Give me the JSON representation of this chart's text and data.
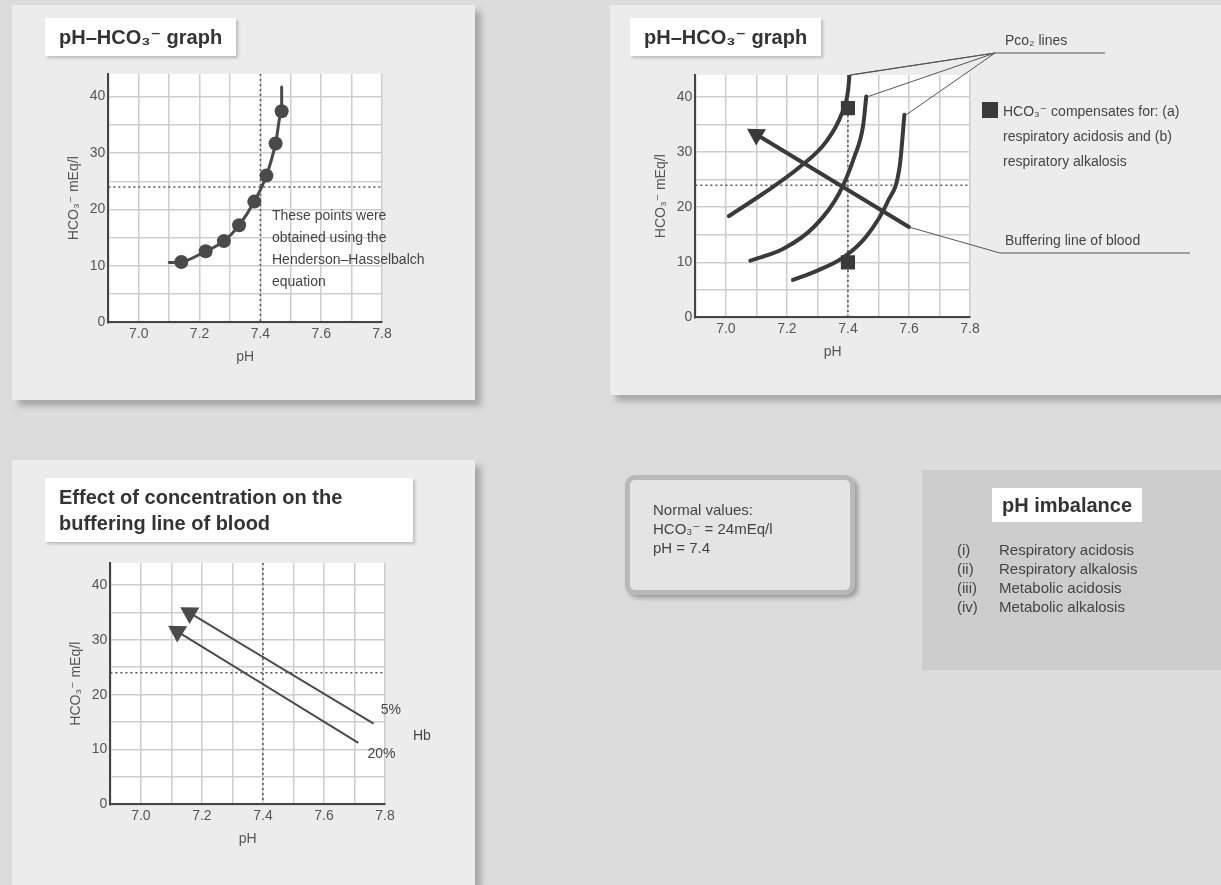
{
  "chart_data": [
    {
      "type": "line",
      "title": "pH–HCO₃⁻ graph",
      "xlabel": "pH",
      "ylabel": "HCO₃⁻ mEq/l",
      "xlim": [
        6.9,
        7.8
      ],
      "ylim": [
        0,
        44
      ],
      "xticks": [
        {
          "value": 6.9,
          "label": null
        },
        {
          "value": 7,
          "label": "7.0"
        },
        {
          "value": 7.1,
          "label": null
        },
        7.2,
        {
          "value": 7.3,
          "label": null
        },
        7.4,
        {
          "value": 7.5,
          "label": null
        },
        7.6,
        {
          "value": 7.7,
          "label": null
        },
        7.8
      ],
      "yticks": [
        0,
        {
          "value": 5,
          "label": null
        },
        10,
        {
          "value": 15,
          "label": null
        },
        20,
        {
          "value": 25,
          "label": null
        },
        30,
        {
          "value": 35,
          "label": null
        },
        40
      ],
      "grid": true,
      "legend": false,
      "ref_lines": [
        {
          "axis": "x",
          "value": 7.4,
          "line_style": "dotted",
          "color": "#555555"
        },
        {
          "axis": "y",
          "value": 24,
          "line_style": "dotted",
          "color": "#555555"
        }
      ],
      "annotations": [
        "These points were obtained using the Henderson–Hasselbalch equation"
      ],
      "series": [
        {
          "type": "line",
          "marker": "none",
          "color": "#4a4a4a",
          "x": [
            7.1,
            7.14,
            7.22,
            7.28,
            7.33,
            7.38,
            7.42,
            7.45,
            7.47,
            7.47
          ],
          "values": [
            10.6,
            10.7,
            12.6,
            14.4,
            17.2,
            21.4,
            26,
            31.7,
            37.4,
            41.7
          ]
        },
        {
          "type": "scatter",
          "marker": "circle",
          "color": "#4a4a4a",
          "x": [
            7.14,
            7.22,
            7.28,
            7.33,
            7.38,
            7.42,
            7.45,
            7.47
          ],
          "values": [
            10.7,
            12.6,
            14.4,
            17.2,
            21.4,
            26,
            31.7,
            37.4
          ]
        }
      ]
    },
    {
      "type": "line",
      "title": "pH–HCO₃⁻ graph",
      "xlabel": "pH",
      "ylabel": "HCO₃⁻ mEq/l",
      "xlim": [
        6.9,
        7.8
      ],
      "ylim": [
        0,
        44
      ],
      "xticks": [
        {
          "value": 6.9,
          "label": null
        },
        {
          "value": 7,
          "label": "7.0"
        },
        {
          "value": 7.1,
          "label": null
        },
        7.2,
        {
          "value": 7.3,
          "label": null
        },
        7.4,
        {
          "value": 7.5,
          "label": null
        },
        7.6,
        {
          "value": 7.7,
          "label": null
        },
        7.8
      ],
      "yticks": [
        0,
        {
          "value": 5,
          "label": null
        },
        10,
        {
          "value": 15,
          "label": null
        },
        20,
        {
          "value": 25,
          "label": null
        },
        30,
        {
          "value": 35,
          "label": null
        },
        40
      ],
      "grid": true,
      "legend": "right",
      "ref_lines": [
        {
          "axis": "x",
          "value": 7.4,
          "line_style": "dotted",
          "color": "#555555"
        },
        {
          "axis": "y",
          "value": 24,
          "line_style": "dotted",
          "color": "#555555"
        }
      ],
      "annotations": [
        {
          "text": "Pco₂ lines",
          "x": 7.405,
          "y": 44
        }
      ],
      "series": [
        {
          "type": "line",
          "marker": "none",
          "color": "#3a3a3a",
          "x": [
            7.01,
            7.12,
            7.24,
            7.33,
            7.38,
            7.4,
            7.405
          ],
          "values": [
            18.4,
            22.4,
            27.2,
            32,
            37,
            41,
            44
          ]
        },
        {
          "type": "line",
          "marker": "none",
          "color": "#3a3a3a",
          "x": [
            7.08,
            7.19,
            7.29,
            7.37,
            7.42,
            7.45,
            7.46
          ],
          "values": [
            10.3,
            12.5,
            16.5,
            22.4,
            29,
            34.9,
            40.1
          ]
        },
        {
          "type": "line",
          "marker": "none",
          "color": "#3a3a3a",
          "x": [
            7.22,
            7.3,
            7.38,
            7.46,
            7.53,
            7.57,
            7.585
          ],
          "values": [
            6.8,
            8.5,
            10.7,
            14.7,
            21,
            27.6,
            36.8
          ]
        },
        {
          "type": "line",
          "marker": "triangle",
          "name": "Buffering line of blood",
          "color": "#3a3a3a",
          "x": [
            7.6,
            7.1
          ],
          "values": [
            16.4,
            33.2
          ]
        },
        {
          "type": "scatter",
          "marker": "square",
          "name": "HCO₃⁻ compensates for: (a) respiratory acidosis and (b) respiratory alkalosis",
          "color": "#3a3a3a",
          "x": [
            7.4,
            7.4
          ],
          "values": [
            38,
            10
          ]
        }
      ]
    },
    {
      "type": "line",
      "title": "Effect of concentration on the buffering line of blood",
      "xlabel": "pH",
      "ylabel": "HCO₃⁻ mEq/l",
      "xlim": [
        6.9,
        7.8
      ],
      "ylim": [
        0,
        44
      ],
      "xticks": [
        {
          "value": 6.9,
          "label": null
        },
        {
          "value": 7,
          "label": "7.0"
        },
        {
          "value": 7.1,
          "label": null
        },
        7.2,
        {
          "value": 7.3,
          "label": null
        },
        7.4,
        {
          "value": 7.5,
          "label": null
        },
        7.6,
        {
          "value": 7.7,
          "label": null
        },
        7.8
      ],
      "yticks": [
        0,
        {
          "value": 5,
          "label": null
        },
        10,
        {
          "value": 15,
          "label": null
        },
        20,
        {
          "value": 25,
          "label": null
        },
        30,
        {
          "value": 35,
          "label": null
        },
        40
      ],
      "grid": true,
      "legend": false,
      "ref_lines": [
        {
          "axis": "x",
          "value": 7.4,
          "line_style": "dotted",
          "color": "#555555"
        },
        {
          "axis": "y",
          "value": 24,
          "line_style": "dotted",
          "color": "#555555"
        }
      ],
      "annotations": [
        "Hb"
      ],
      "series": [
        {
          "type": "line",
          "marker": "triangle",
          "name": "5%",
          "color": "#4a4a4a",
          "x": [
            7.76,
            7.16
          ],
          "values": [
            14.8,
            34.9
          ]
        },
        {
          "type": "line",
          "marker": "triangle",
          "name": "20%",
          "color": "#4a4a4a",
          "x": [
            7.71,
            7.12
          ],
          "values": [
            11.3,
            31.5
          ]
        }
      ]
    },
    {
      "type": "other",
      "annotations": [
        "Normal values:",
        "HCO₃⁻ = 24mEq/l",
        "pH = 7.4"
      ]
    },
    {
      "type": "other",
      "title": "pH imbalance",
      "annotations": [
        "(i) Respiratory acidosis",
        "(ii) Respiratory alkalosis",
        "(iii) Metabolic acidosis",
        "(iv) Metabolic alkalosis"
      ]
    }
  ]
}
